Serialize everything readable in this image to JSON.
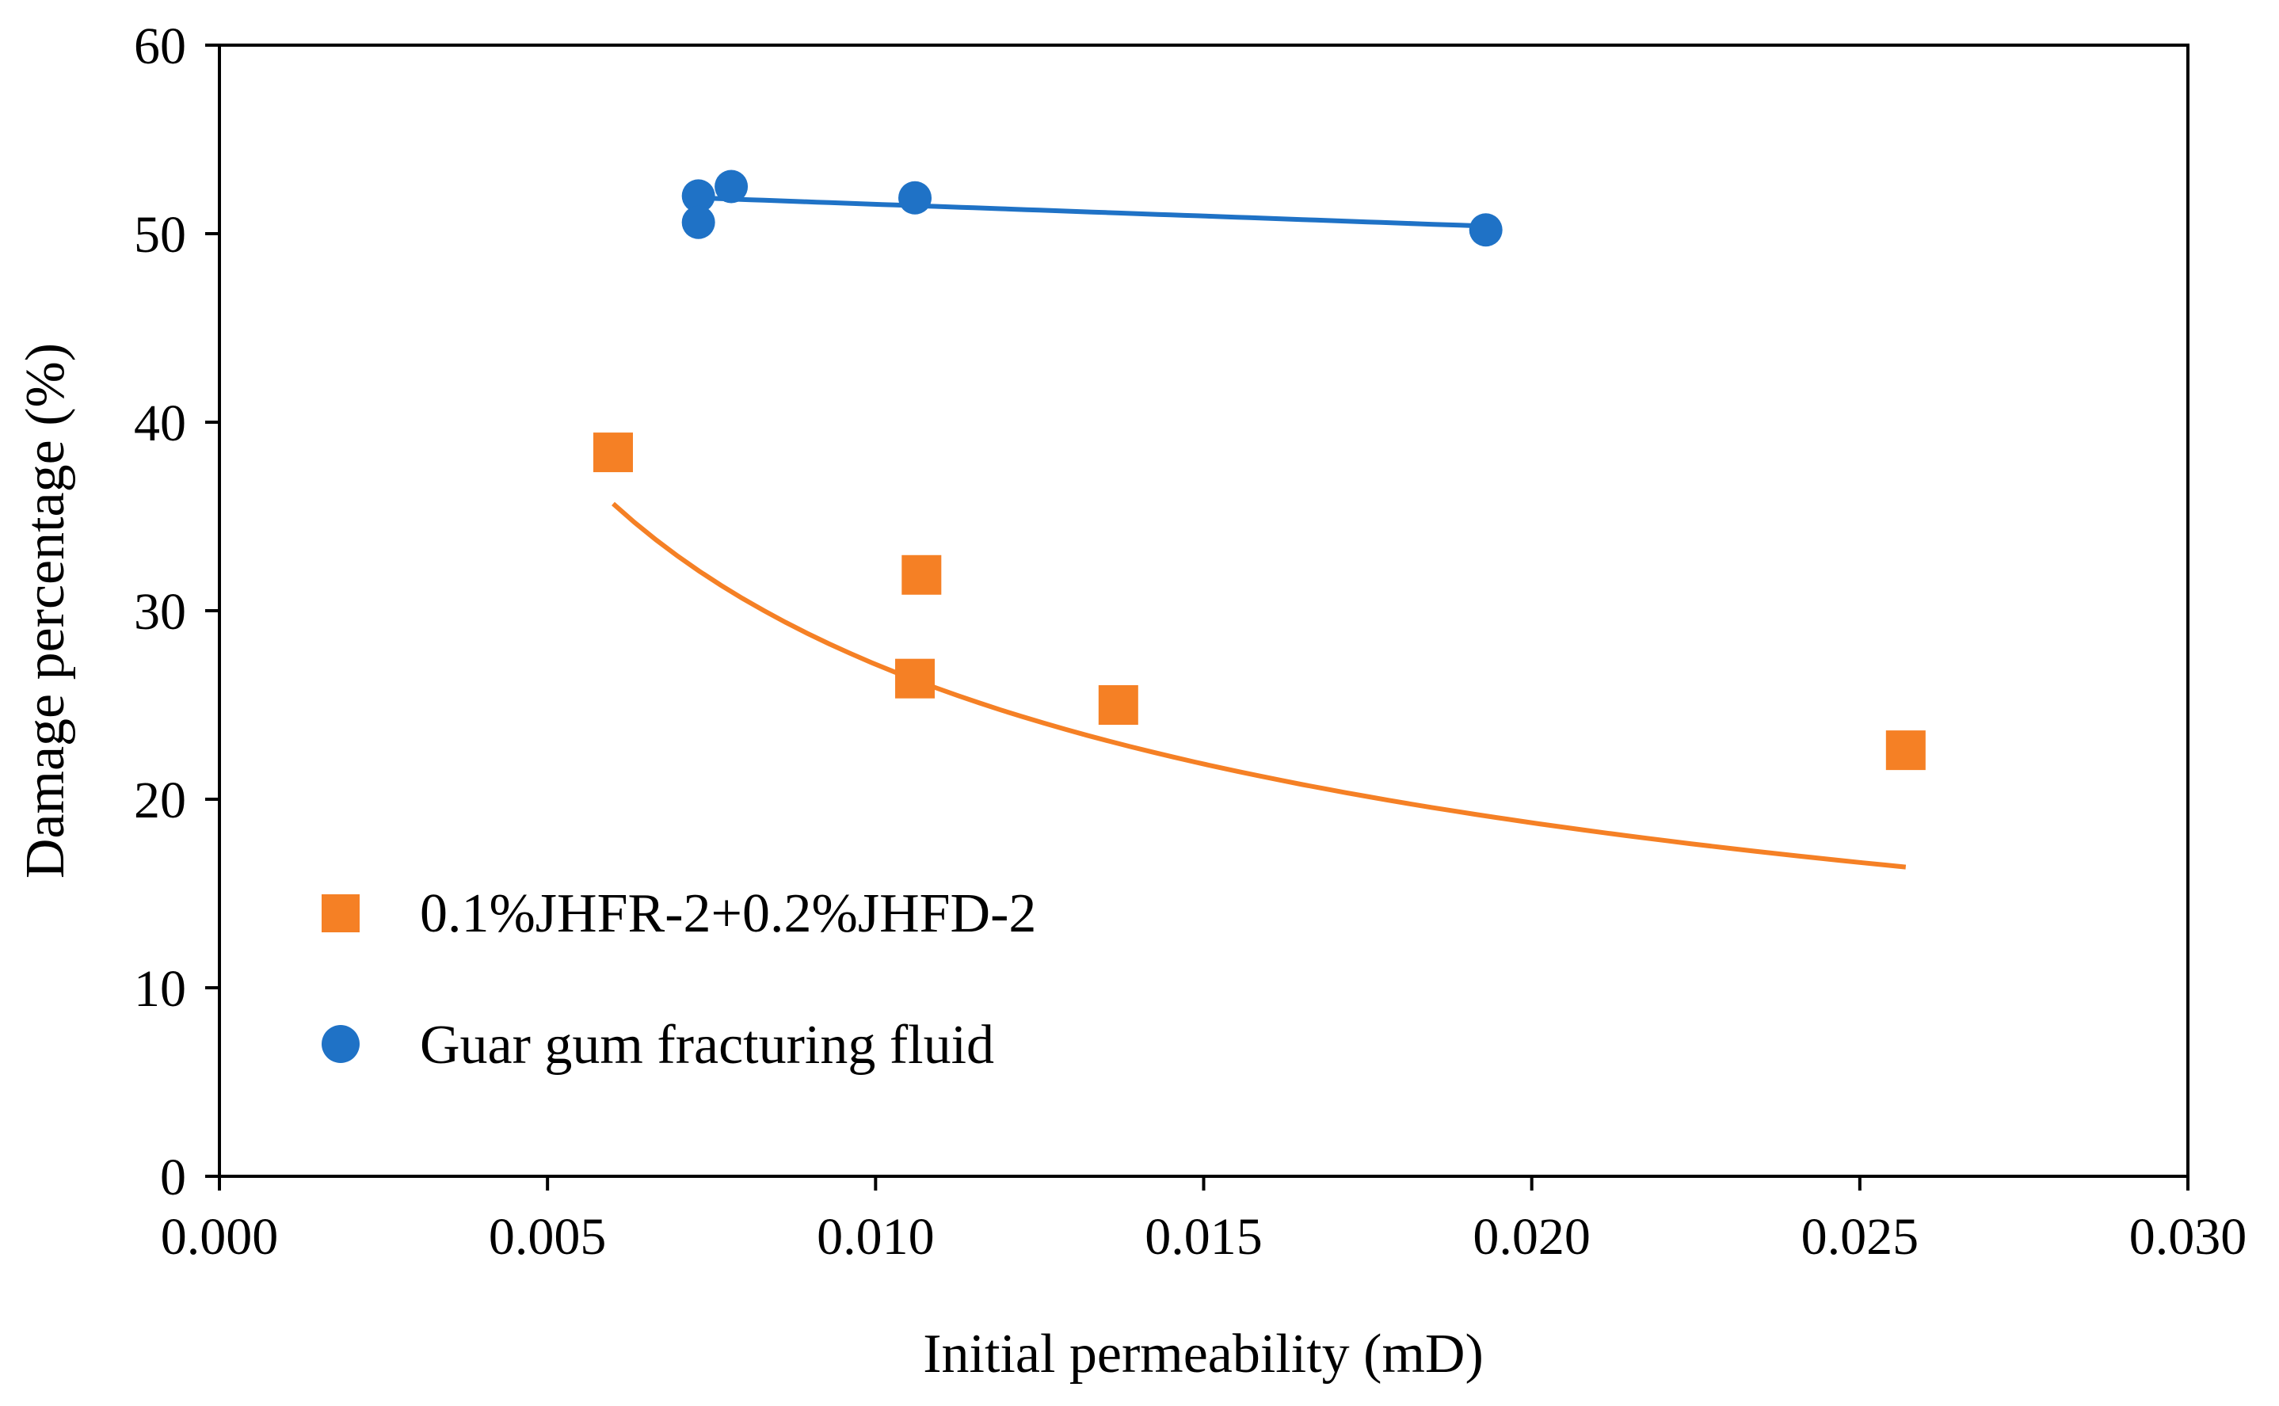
{
  "chart_data": {
    "type": "scatter",
    "title": "",
    "xlabel": "Initial permeability (mD)",
    "ylabel": "Damage percentage (%)",
    "xlim": [
      0.0,
      0.03
    ],
    "ylim": [
      0,
      60
    ],
    "xticks": [
      0.0,
      0.005,
      0.01,
      0.015,
      0.02,
      0.025,
      0.03
    ],
    "xtick_labels": [
      "0.000",
      "0.005",
      "0.010",
      "0.015",
      "0.020",
      "0.025",
      "0.030"
    ],
    "yticks": [
      0,
      10,
      20,
      30,
      40,
      50,
      60
    ],
    "ytick_labels": [
      "0",
      "10",
      "20",
      "30",
      "40",
      "50",
      "60"
    ],
    "grid": false,
    "legend_position": "bottom-left",
    "series": [
      {
        "name": "0.1%JHFR-2+0.2%JHFD-2",
        "marker": "square",
        "color": "#F58025",
        "x": [
          0.006,
          0.0106,
          0.0107,
          0.0137,
          0.0257
        ],
        "y": [
          38.4,
          26.4,
          31.9,
          25.0,
          22.6
        ],
        "trendline": {
          "type": "power",
          "x_from": 0.006,
          "x_to": 0.0257,
          "coef": 2.32,
          "exp": -0.5342
        }
      },
      {
        "name": "Guar gum fracturing fluid",
        "marker": "circle",
        "color": "#1F72C6",
        "x": [
          0.0073,
          0.0073,
          0.0078,
          0.0106,
          0.0193
        ],
        "y": [
          52.0,
          50.6,
          52.5,
          51.9,
          50.2
        ],
        "trendline": {
          "type": "linear",
          "x_from": 0.0073,
          "x_to": 0.0193,
          "slope": -125.0,
          "intercept": 52.81
        }
      }
    ]
  }
}
